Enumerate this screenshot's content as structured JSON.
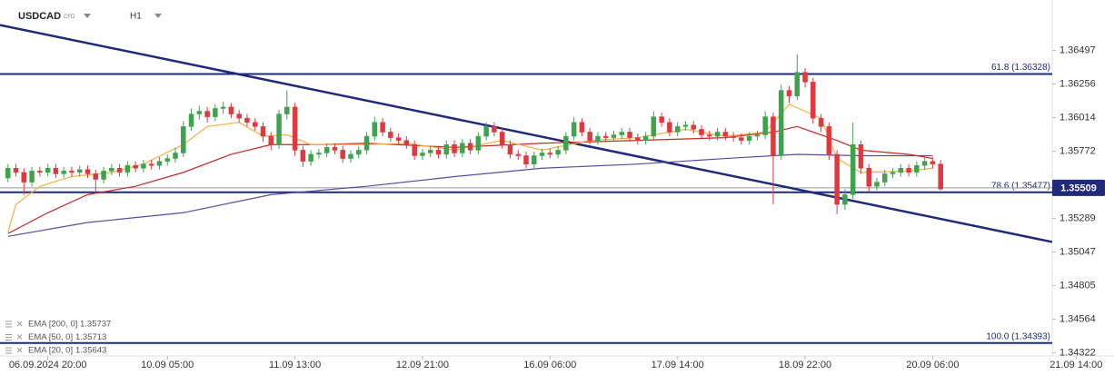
{
  "chart_data": {
    "type": "candlestick",
    "symbol": "USDCAD",
    "instrument": "CFD",
    "timeframe": "H1",
    "xlim": [
      -1,
      131
    ],
    "ylim": [
      1.343,
      1.3686
    ],
    "xticks": [
      {
        "value": 5,
        "label": "06.09.2024 20:00"
      },
      {
        "value": 20,
        "label": "10.09 05:00"
      },
      {
        "value": 36,
        "label": "11.09 13:00"
      },
      {
        "value": 52,
        "label": "12.09 21:00"
      },
      {
        "value": 68,
        "label": "16.09 06:00"
      },
      {
        "value": 84,
        "label": "17.09 14:00"
      },
      {
        "value": 100,
        "label": "18.09 22:00"
      },
      {
        "value": 116,
        "label": "20.09 06:00"
      },
      {
        "value": 134,
        "label": "21.09 14:00"
      }
    ],
    "yticks": [
      1.36497,
      1.36256,
      1.36014,
      1.35772,
      1.35289,
      1.35047,
      1.34805,
      1.34564,
      1.34322
    ],
    "up_color": "#3fa34d",
    "down_color": "#e0383e",
    "candles": [
      [
        1.3558,
        1.3568,
        1.3555,
        1.3565
      ],
      [
        1.3565,
        1.3568,
        1.3559,
        1.3562
      ],
      [
        1.3562,
        1.3565,
        1.3546,
        1.3555
      ],
      [
        1.3555,
        1.3566,
        1.3552,
        1.3563
      ],
      [
        1.3563,
        1.3566,
        1.3559,
        1.3562
      ],
      [
        1.3562,
        1.3568,
        1.3559,
        1.3565
      ],
      [
        1.3565,
        1.3568,
        1.3558,
        1.3561
      ],
      [
        1.3561,
        1.3566,
        1.3558,
        1.3563
      ],
      [
        1.3563,
        1.3566,
        1.3559,
        1.3562
      ],
      [
        1.3562,
        1.3567,
        1.3559,
        1.3564
      ],
      [
        1.3564,
        1.3567,
        1.3558,
        1.3561
      ],
      [
        1.3561,
        1.3564,
        1.3547,
        1.3557
      ],
      [
        1.3557,
        1.3566,
        1.3554,
        1.3563
      ],
      [
        1.3563,
        1.3568,
        1.356,
        1.3565
      ],
      [
        1.3565,
        1.3568,
        1.3559,
        1.3562
      ],
      [
        1.3562,
        1.357,
        1.3559,
        1.3567
      ],
      [
        1.3567,
        1.357,
        1.3562,
        1.3565
      ],
      [
        1.3565,
        1.3571,
        1.3562,
        1.3568
      ],
      [
        1.3568,
        1.3571,
        1.3564,
        1.3567
      ],
      [
        1.3567,
        1.3573,
        1.3564,
        1.357
      ],
      [
        1.357,
        1.3575,
        1.3567,
        1.3572
      ],
      [
        1.3572,
        1.358,
        1.3569,
        1.3576
      ],
      [
        1.3576,
        1.3599,
        1.3573,
        1.3595
      ],
      [
        1.3595,
        1.3608,
        1.3592,
        1.3604
      ],
      [
        1.3604,
        1.361,
        1.36,
        1.3606
      ],
      [
        1.3606,
        1.3609,
        1.3598,
        1.3602
      ],
      [
        1.3602,
        1.3611,
        1.3599,
        1.3608
      ],
      [
        1.3608,
        1.3613,
        1.3604,
        1.3609
      ],
      [
        1.3609,
        1.3612,
        1.3601,
        1.3604
      ],
      [
        1.3604,
        1.3607,
        1.3598,
        1.3601
      ],
      [
        1.3601,
        1.3604,
        1.3595,
        1.3598
      ],
      [
        1.3598,
        1.3601,
        1.3592,
        1.3595
      ],
      [
        1.3595,
        1.3598,
        1.3584,
        1.3588
      ],
      [
        1.3588,
        1.3591,
        1.3578,
        1.3582
      ],
      [
        1.3582,
        1.3607,
        1.3579,
        1.3604
      ],
      [
        1.3604,
        1.3621,
        1.36,
        1.3609
      ],
      [
        1.3609,
        1.3612,
        1.3574,
        1.3578
      ],
      [
        1.3578,
        1.3581,
        1.3566,
        1.357
      ],
      [
        1.357,
        1.3578,
        1.3567,
        1.3575
      ],
      [
        1.3575,
        1.3579,
        1.3572,
        1.3576
      ],
      [
        1.3576,
        1.3583,
        1.3573,
        1.358
      ],
      [
        1.358,
        1.3583,
        1.3575,
        1.3578
      ],
      [
        1.3578,
        1.3581,
        1.3569,
        1.3572
      ],
      [
        1.3572,
        1.3578,
        1.3569,
        1.3575
      ],
      [
        1.3575,
        1.3581,
        1.3572,
        1.3578
      ],
      [
        1.3578,
        1.3591,
        1.3575,
        1.3588
      ],
      [
        1.3588,
        1.3602,
        1.3585,
        1.3598
      ],
      [
        1.3598,
        1.3601,
        1.3588,
        1.3591
      ],
      [
        1.3591,
        1.3594,
        1.3584,
        1.3587
      ],
      [
        1.3587,
        1.359,
        1.3582,
        1.3585
      ],
      [
        1.3585,
        1.3588,
        1.3579,
        1.3582
      ],
      [
        1.3582,
        1.3585,
        1.3571,
        1.3574
      ],
      [
        1.3574,
        1.3579,
        1.3571,
        1.3576
      ],
      [
        1.3576,
        1.3581,
        1.3573,
        1.3578
      ],
      [
        1.3578,
        1.3581,
        1.3572,
        1.3575
      ],
      [
        1.3575,
        1.3585,
        1.3572,
        1.3582
      ],
      [
        1.3582,
        1.3585,
        1.3573,
        1.3576
      ],
      [
        1.3576,
        1.3586,
        1.3573,
        1.3583
      ],
      [
        1.3583,
        1.3586,
        1.3575,
        1.3578
      ],
      [
        1.3578,
        1.3591,
        1.3575,
        1.3588
      ],
      [
        1.3588,
        1.3598,
        1.3585,
        1.3595
      ],
      [
        1.3595,
        1.3598,
        1.3588,
        1.3591
      ],
      [
        1.3591,
        1.3594,
        1.3579,
        1.3582
      ],
      [
        1.3582,
        1.3585,
        1.3572,
        1.3575
      ],
      [
        1.3575,
        1.3578,
        1.3571,
        1.3574
      ],
      [
        1.3574,
        1.3577,
        1.3565,
        1.3568
      ],
      [
        1.3568,
        1.3577,
        1.3565,
        1.3574
      ],
      [
        1.3574,
        1.3579,
        1.3571,
        1.3576
      ],
      [
        1.3576,
        1.3579,
        1.3572,
        1.3575
      ],
      [
        1.3575,
        1.3581,
        1.3572,
        1.3578
      ],
      [
        1.3578,
        1.3591,
        1.3575,
        1.3588
      ],
      [
        1.3588,
        1.3602,
        1.3585,
        1.3598
      ],
      [
        1.3598,
        1.3601,
        1.3588,
        1.3591
      ],
      [
        1.3591,
        1.3594,
        1.3582,
        1.3585
      ],
      [
        1.3585,
        1.3591,
        1.3582,
        1.3588
      ],
      [
        1.3588,
        1.3591,
        1.3584,
        1.3587
      ],
      [
        1.3587,
        1.3592,
        1.3584,
        1.3589
      ],
      [
        1.3589,
        1.3594,
        1.3586,
        1.3591
      ],
      [
        1.3591,
        1.3594,
        1.3584,
        1.3587
      ],
      [
        1.3587,
        1.359,
        1.3582,
        1.3585
      ],
      [
        1.3585,
        1.3591,
        1.3582,
        1.3588
      ],
      [
        1.3588,
        1.3606,
        1.3585,
        1.3602
      ],
      [
        1.3602,
        1.3605,
        1.3595,
        1.3598
      ],
      [
        1.3598,
        1.3601,
        1.3588,
        1.3591
      ],
      [
        1.3591,
        1.3598,
        1.3588,
        1.3595
      ],
      [
        1.3595,
        1.3599,
        1.3592,
        1.3596
      ],
      [
        1.3596,
        1.3599,
        1.359,
        1.3593
      ],
      [
        1.3593,
        1.3596,
        1.3586,
        1.3589
      ],
      [
        1.3589,
        1.3592,
        1.3585,
        1.3588
      ],
      [
        1.3588,
        1.3594,
        1.3585,
        1.3591
      ],
      [
        1.3591,
        1.3594,
        1.3585,
        1.3588
      ],
      [
        1.3588,
        1.3591,
        1.3584,
        1.3587
      ],
      [
        1.3587,
        1.359,
        1.3582,
        1.3585
      ],
      [
        1.3585,
        1.3591,
        1.3582,
        1.3588
      ],
      [
        1.3588,
        1.3592,
        1.3585,
        1.3589
      ],
      [
        1.3589,
        1.3606,
        1.3586,
        1.3602
      ],
      [
        1.3602,
        1.3605,
        1.3539,
        1.3574
      ],
      [
        1.3574,
        1.3625,
        1.3571,
        1.3621
      ],
      [
        1.3621,
        1.3624,
        1.3612,
        1.3617
      ],
      [
        1.3617,
        1.3647,
        1.3614,
        1.3634
      ],
      [
        1.3634,
        1.3637,
        1.3623,
        1.3627
      ],
      [
        1.3627,
        1.363,
        1.3597,
        1.3601
      ],
      [
        1.3601,
        1.3604,
        1.3591,
        1.3595
      ],
      [
        1.3595,
        1.3598,
        1.3571,
        1.3575
      ],
      [
        1.3575,
        1.3578,
        1.3532,
        1.3539
      ],
      [
        1.3539,
        1.355,
        1.3535,
        1.3546
      ],
      [
        1.3546,
        1.3598,
        1.3543,
        1.3582
      ],
      [
        1.3582,
        1.3585,
        1.3561,
        1.3565
      ],
      [
        1.3565,
        1.3568,
        1.3548,
        1.3552
      ],
      [
        1.3552,
        1.3558,
        1.3549,
        1.3555
      ],
      [
        1.3555,
        1.3564,
        1.3552,
        1.3561
      ],
      [
        1.3561,
        1.3565,
        1.3558,
        1.3562
      ],
      [
        1.3562,
        1.3568,
        1.3559,
        1.3565
      ],
      [
        1.3565,
        1.3568,
        1.3559,
        1.3562
      ],
      [
        1.3562,
        1.357,
        1.3559,
        1.3567
      ],
      [
        1.3567,
        1.3573,
        1.3564,
        1.357
      ],
      [
        1.357,
        1.3573,
        1.3565,
        1.3568
      ],
      [
        1.3568,
        1.3571,
        1.3549,
        1.355
      ]
    ],
    "series": [
      {
        "name": "EMA [200, 0]",
        "last": 1.35737,
        "color": "#5b4aa8",
        "x": [
          0,
          10,
          22,
          33,
          45,
          56,
          67,
          79,
          90,
          99,
          107,
          116
        ],
        "values": [
          1.3516,
          1.3526,
          1.3533,
          1.3546,
          1.3552,
          1.3559,
          1.3565,
          1.3568,
          1.3572,
          1.3575,
          1.3574,
          1.3574
        ]
      },
      {
        "name": "EMA [50, 0]",
        "last": 1.35713,
        "color": "#c62828",
        "x": [
          0,
          5,
          10,
          16,
          22,
          28,
          33,
          39,
          45,
          56,
          67,
          79,
          90,
          96,
          99,
          104,
          107,
          113,
          116
        ],
        "values": [
          1.3518,
          1.3533,
          1.3546,
          1.3552,
          1.3562,
          1.3575,
          1.3582,
          1.3582,
          1.3583,
          1.358,
          1.3583,
          1.3585,
          1.3587,
          1.3591,
          1.3595,
          1.3585,
          1.3578,
          1.3575,
          1.3572
        ]
      },
      {
        "name": "EMA [20, 0]",
        "last": 1.35643,
        "color": "#f5b041",
        "x": [
          0,
          1,
          4,
          8,
          13,
          17,
          22,
          25,
          29,
          32,
          35,
          38,
          45,
          50,
          56,
          62,
          67,
          73,
          79,
          85,
          90,
          95,
          98,
          102,
          104,
          107,
          113,
          116
        ],
        "values": [
          1.3519,
          1.3539,
          1.3552,
          1.3559,
          1.3562,
          1.3568,
          1.3582,
          1.3595,
          1.3598,
          1.3588,
          1.3589,
          1.3582,
          1.3582,
          1.3583,
          1.3578,
          1.3585,
          1.3578,
          1.3585,
          1.3587,
          1.3593,
          1.3588,
          1.3591,
          1.3611,
          1.3601,
          1.3572,
          1.3562,
          1.3563,
          1.3565
        ]
      }
    ],
    "trendline": {
      "x": [
        -1,
        131
      ],
      "values": [
        1.3668,
        1.3512
      ],
      "color": "#1f2a7a"
    },
    "levels": [
      {
        "label": "61.8 (1.36328)",
        "value": 1.36328,
        "color": "#1f2a7a"
      },
      {
        "label": "78.6 (1.35477)",
        "value": 1.35477,
        "color": "#1f2a7a"
      },
      {
        "label": "100.0 (1.34393)",
        "value": 1.34393,
        "color": "#1f2a7a"
      }
    ],
    "last_price": 1.35509
  }
}
